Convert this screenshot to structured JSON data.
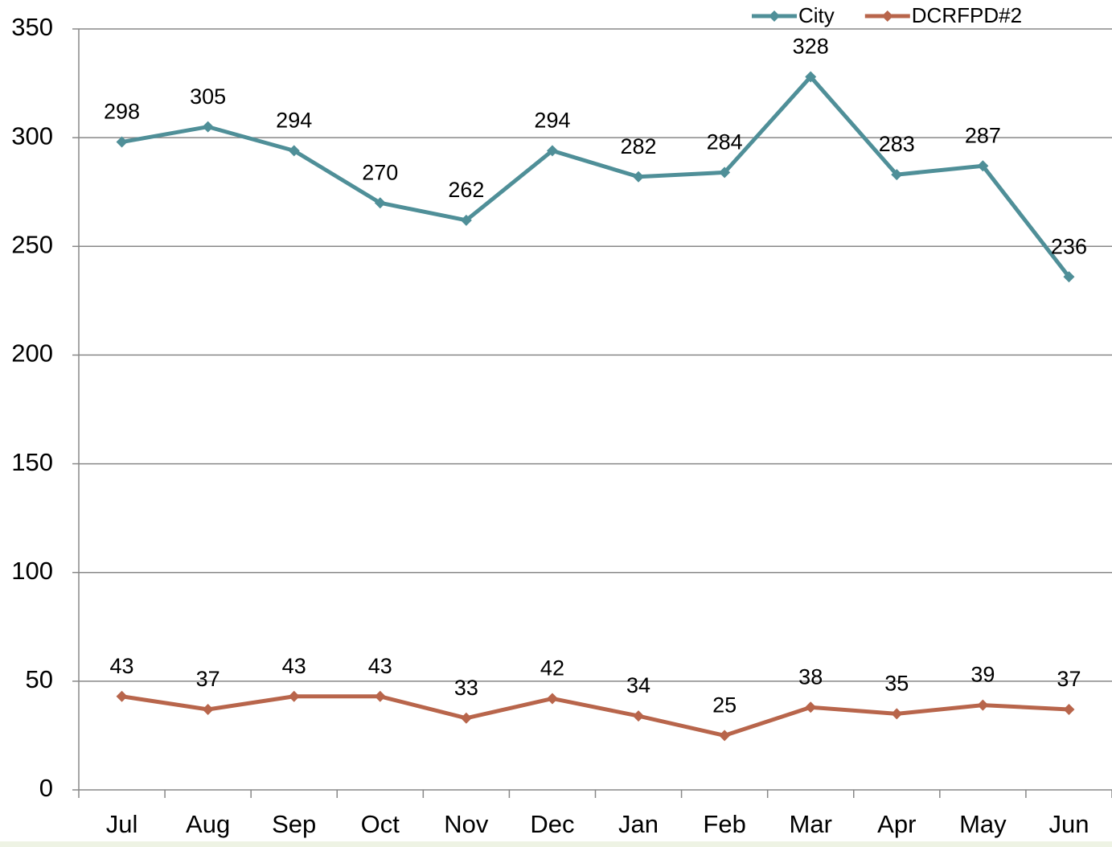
{
  "chart_data": {
    "type": "line",
    "categories": [
      "Jul",
      "Aug",
      "Sep",
      "Oct",
      "Nov",
      "Dec",
      "Jan",
      "Feb",
      "Mar",
      "Apr",
      "May",
      "Jun"
    ],
    "series": [
      {
        "name": "City",
        "color": "#4f8f98",
        "values": [
          298,
          305,
          294,
          270,
          262,
          294,
          282,
          284,
          328,
          283,
          287,
          236
        ]
      },
      {
        "name": "DCRFPD#2",
        "color": "#b8654b",
        "values": [
          43,
          37,
          43,
          43,
          33,
          42,
          34,
          25,
          38,
          35,
          39,
          37
        ]
      }
    ],
    "ylim": [
      0,
      350
    ],
    "yticks": [
      0,
      50,
      100,
      150,
      200,
      250,
      300,
      350
    ],
    "grid": true,
    "legend": "top-right"
  }
}
